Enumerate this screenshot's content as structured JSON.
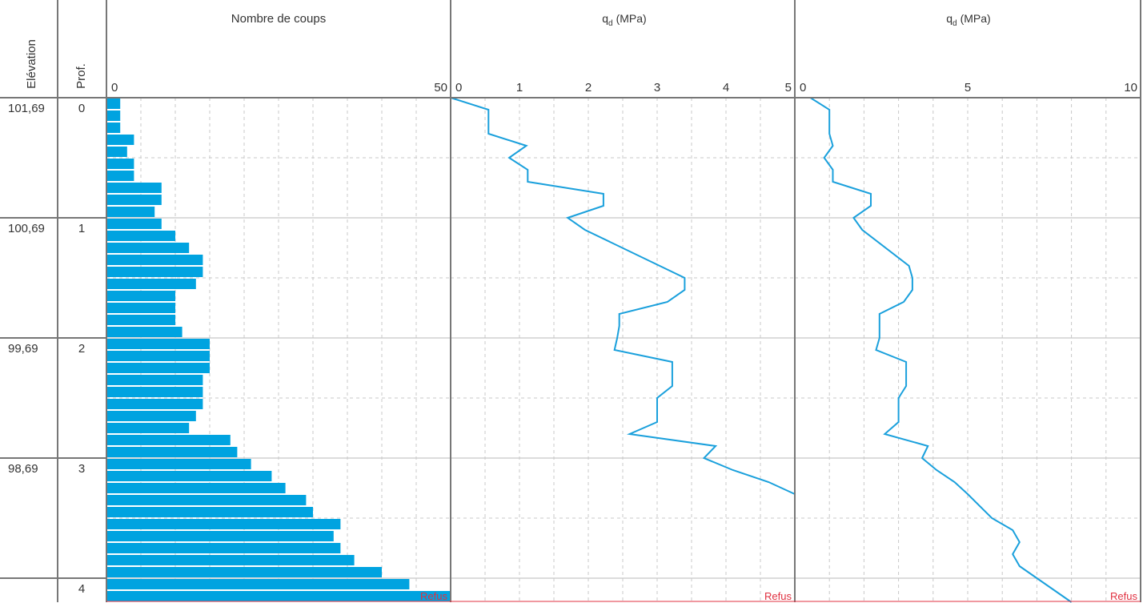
{
  "header": {
    "elevation_label": "Elévation",
    "depth_label": "Prof.",
    "refus_label": "Refus"
  },
  "colors": {
    "bar": "#00a3e0",
    "line": "#1aa0dc",
    "grid": "#c8c8c8",
    "frame": "#777777",
    "refus": "#e03040"
  },
  "rows": [
    {
      "elevation": "101,69",
      "depth": "0"
    },
    {
      "elevation": "100,69",
      "depth": "1"
    },
    {
      "elevation": "99,69",
      "depth": "2"
    },
    {
      "elevation": "98,69",
      "depth": "3"
    },
    {
      "elevation": "",
      "depth": "4"
    }
  ],
  "chart_data": [
    {
      "type": "bar",
      "title": "Nombre de coups",
      "orientation": "horizontal",
      "xlim": [
        0,
        50
      ],
      "ticks": [
        "0",
        "50"
      ],
      "ylim_depth_m": [
        0,
        4.2
      ],
      "depth_step_m": 0.1,
      "values": [
        2,
        2,
        2,
        4,
        3,
        4,
        4,
        8,
        8,
        7,
        8,
        10,
        12,
        14,
        14,
        13,
        10,
        10,
        10,
        11,
        15,
        15,
        15,
        14,
        14,
        14,
        13,
        12,
        18,
        19,
        21,
        24,
        26,
        29,
        30,
        34,
        33,
        34,
        36,
        40,
        44,
        50
      ],
      "refus": "Refus"
    },
    {
      "type": "line",
      "title": "qd (MPa)",
      "title_main": "q",
      "title_sub": "d",
      "title_unit": "(MPa)",
      "xlim": [
        0,
        5
      ],
      "ticks": [
        "0",
        "1",
        "2",
        "3",
        "4",
        "5"
      ],
      "ylim_depth_m": [
        0,
        4.2
      ],
      "points": [
        [
          0,
          0.0
        ],
        [
          0.55,
          0.1
        ],
        [
          0.55,
          0.3
        ],
        [
          1.1,
          0.4
        ],
        [
          0.85,
          0.5
        ],
        [
          1.12,
          0.6
        ],
        [
          1.12,
          0.7
        ],
        [
          2.22,
          0.8
        ],
        [
          2.22,
          0.9
        ],
        [
          1.7,
          1.0
        ],
        [
          1.95,
          1.1
        ],
        [
          3.4,
          1.5
        ],
        [
          3.4,
          1.6
        ],
        [
          3.15,
          1.7
        ],
        [
          2.45,
          1.8
        ],
        [
          2.45,
          1.9
        ],
        [
          2.42,
          2.0
        ],
        [
          2.38,
          2.1
        ],
        [
          3.22,
          2.2
        ],
        [
          3.22,
          2.3
        ],
        [
          3.22,
          2.4
        ],
        [
          3.0,
          2.5
        ],
        [
          3.0,
          2.6
        ],
        [
          3.0,
          2.7
        ],
        [
          2.6,
          2.8
        ],
        [
          3.85,
          2.9
        ],
        [
          3.68,
          3.0
        ],
        [
          4.1,
          3.1
        ],
        [
          4.62,
          3.2
        ],
        [
          5.0,
          3.3
        ]
      ],
      "refus": "Refus"
    },
    {
      "type": "line",
      "title": "qd (MPa)",
      "title_main": "q",
      "title_sub": "d",
      "title_unit": "(MPa)",
      "xlim": [
        0,
        10
      ],
      "ticks": [
        "0",
        "5",
        "10"
      ],
      "ylim_depth_m": [
        0,
        4.2
      ],
      "points": [
        [
          0.45,
          0.0
        ],
        [
          1.0,
          0.1
        ],
        [
          1.0,
          0.3
        ],
        [
          1.1,
          0.4
        ],
        [
          0.85,
          0.5
        ],
        [
          1.1,
          0.6
        ],
        [
          1.1,
          0.7
        ],
        [
          2.2,
          0.8
        ],
        [
          2.2,
          0.9
        ],
        [
          1.7,
          1.0
        ],
        [
          1.95,
          1.1
        ],
        [
          3.3,
          1.4
        ],
        [
          3.4,
          1.5
        ],
        [
          3.4,
          1.6
        ],
        [
          3.15,
          1.7
        ],
        [
          2.45,
          1.8
        ],
        [
          2.45,
          1.9
        ],
        [
          2.45,
          2.0
        ],
        [
          2.35,
          2.1
        ],
        [
          3.22,
          2.2
        ],
        [
          3.22,
          2.3
        ],
        [
          3.22,
          2.4
        ],
        [
          3.0,
          2.5
        ],
        [
          3.0,
          2.6
        ],
        [
          3.0,
          2.7
        ],
        [
          2.6,
          2.8
        ],
        [
          3.85,
          2.9
        ],
        [
          3.68,
          3.0
        ],
        [
          4.1,
          3.1
        ],
        [
          4.62,
          3.2
        ],
        [
          5.0,
          3.3
        ],
        [
          5.7,
          3.5
        ],
        [
          6.3,
          3.6
        ],
        [
          6.5,
          3.7
        ],
        [
          6.3,
          3.8
        ],
        [
          6.5,
          3.9
        ],
        [
          7.0,
          4.0
        ],
        [
          7.5,
          4.1
        ],
        [
          8.0,
          4.2
        ]
      ],
      "refus": "Refus"
    }
  ]
}
